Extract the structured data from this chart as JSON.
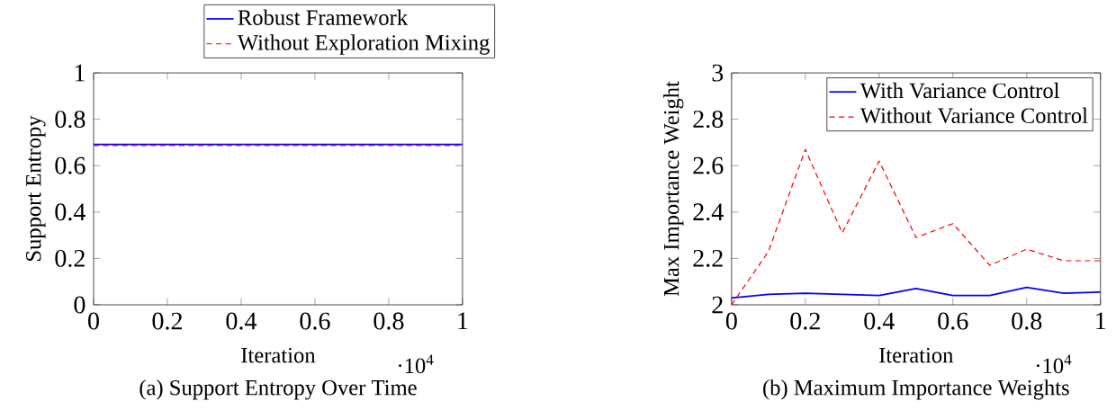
{
  "chart_data": [
    {
      "type": "line",
      "title": "(a) Support Entropy Over Time",
      "xlabel": "Iteration",
      "ylabel": "Support Entropy",
      "annotations": [
        "·10$^{4}$"
      ],
      "x": [
        0,
        1
      ],
      "xlim": [
        0,
        1
      ],
      "xticks": [
        0,
        0.2,
        0.4,
        0.6,
        0.8,
        1
      ],
      "ylim": [
        0,
        1
      ],
      "yticks": [
        0,
        0.2,
        0.4,
        0.6,
        0.8,
        1
      ],
      "legend": "top",
      "series": [
        {
          "name": "Robust Framework",
          "color": "#0000ff",
          "line_style": "solid",
          "values": [
            0.692,
            0.692
          ]
        },
        {
          "name": "Without Exploration Mixing",
          "color": "#ff0000",
          "line_style": "dashed",
          "values": [
            0.687,
            0.687
          ]
        }
      ]
    },
    {
      "type": "line",
      "title": "(b) Maximum Importance Weights",
      "xlabel": "Iteration",
      "ylabel": "Max Importance Weight",
      "annotations": [
        "·10$^{4}$"
      ],
      "x": [
        0,
        0.1,
        0.2,
        0.3,
        0.4,
        0.5,
        0.6,
        0.7,
        0.8,
        0.9,
        1
      ],
      "xlim": [
        0,
        1
      ],
      "xticks": [
        0,
        0.2,
        0.4,
        0.6,
        0.8,
        1
      ],
      "ylim": [
        2,
        3
      ],
      "yticks": [
        2,
        2.2,
        2.4,
        2.6,
        2.8,
        3
      ],
      "legend": "top right",
      "series": [
        {
          "name": "With Variance Control",
          "color": "#0000ff",
          "line_style": "solid",
          "values": [
            2.03,
            2.045,
            2.05,
            2.045,
            2.04,
            2.07,
            2.04,
            2.04,
            2.075,
            2.05,
            2.055
          ]
        },
        {
          "name": "Without Variance Control",
          "color": "#ff0000",
          "line_style": "dashed",
          "values": [
            2.0,
            2.23,
            2.67,
            2.31,
            2.62,
            2.29,
            2.35,
            2.17,
            2.24,
            2.19,
            2.19
          ]
        }
      ]
    }
  ]
}
